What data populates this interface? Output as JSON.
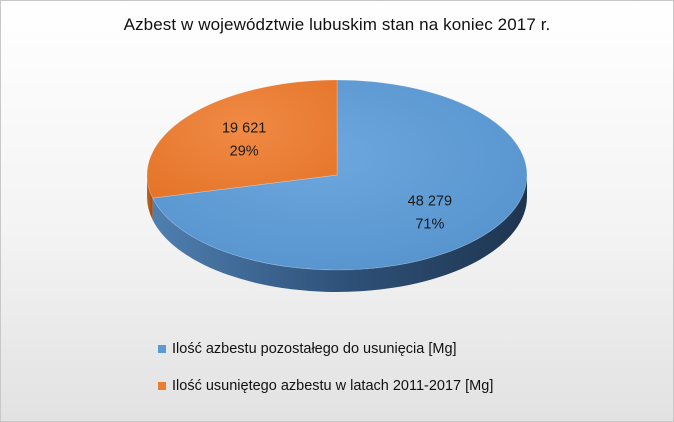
{
  "chart_data": {
    "type": "pie",
    "title": "Azbest w województwie lubuskim stan na koniec 2017 r.",
    "slices": [
      {
        "label": "Ilość azbestu pozostałego do usunięcia [Mg]",
        "value": 48279,
        "value_label": "48 279",
        "percent_label": "71%",
        "color": "#5b9bd5"
      },
      {
        "label": "Ilość usuniętego azbestu w latach 2011-2017 [Mg]",
        "value": 19621,
        "value_label": "19 621",
        "percent_label": "29%",
        "color": "#ed7d31"
      }
    ],
    "style": "3d",
    "legend_position": "bottom"
  }
}
